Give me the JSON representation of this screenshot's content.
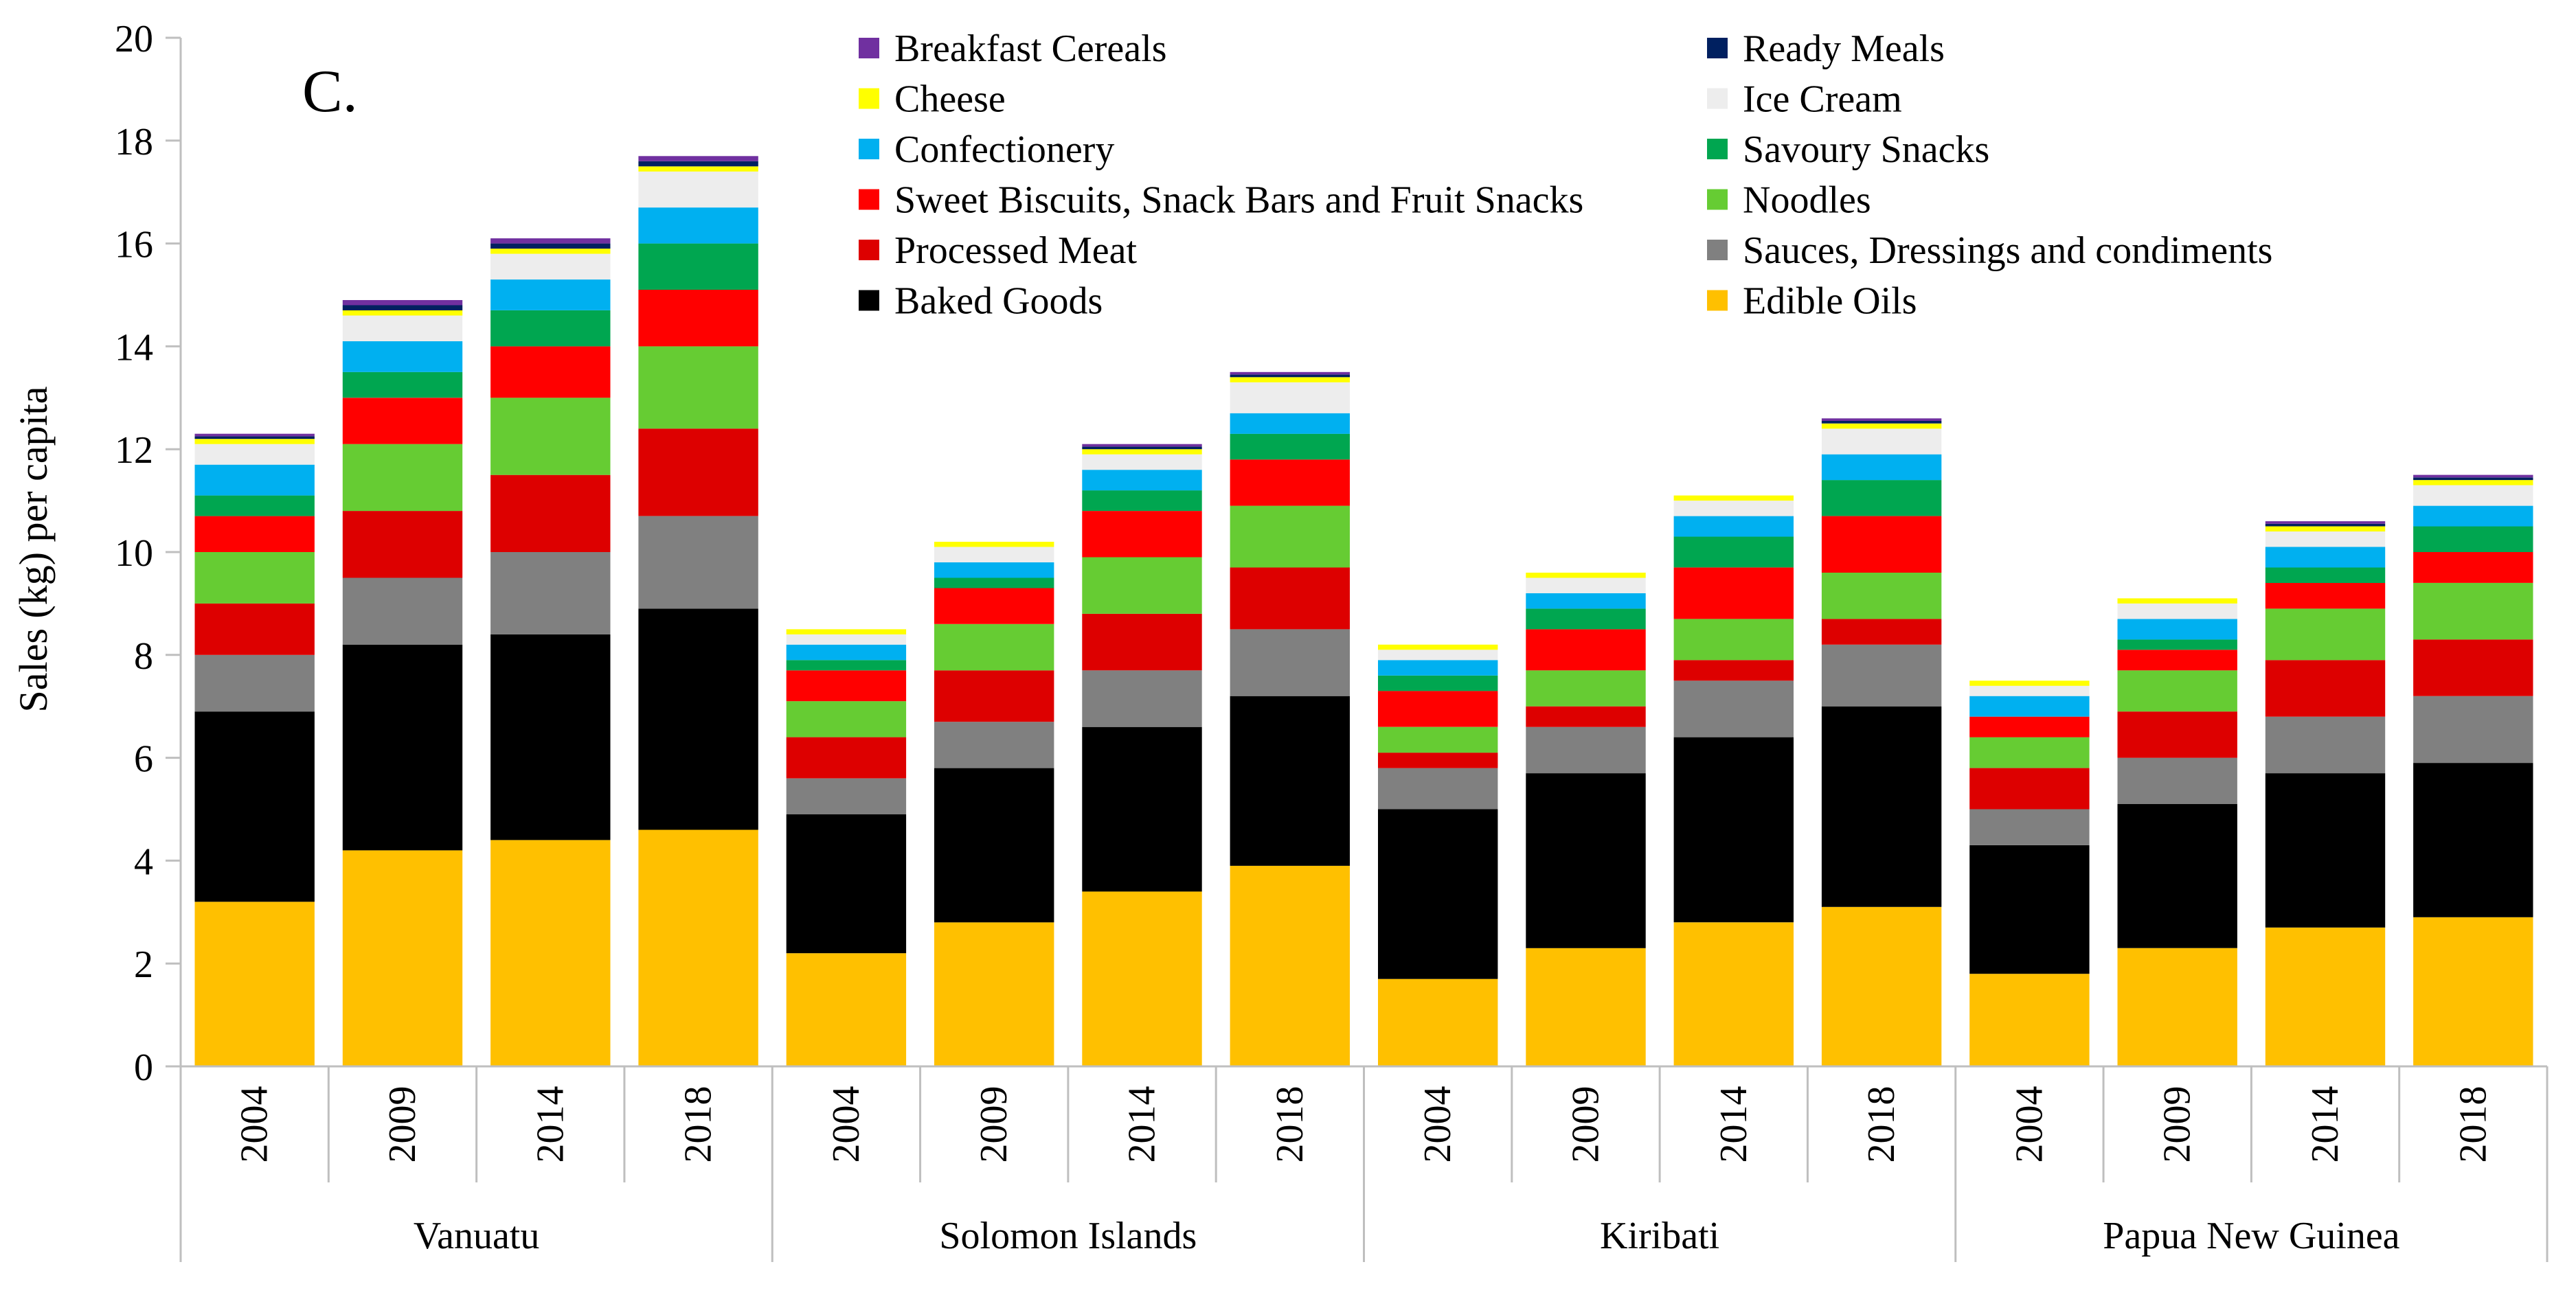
{
  "chart_data": {
    "type": "bar",
    "stacked": true,
    "panel_label": "C.",
    "title": "",
    "xlabel": "",
    "ylabel": "Sales (kg) per capita",
    "ylim": [
      0,
      20
    ],
    "yticks": [
      0,
      2,
      4,
      6,
      8,
      10,
      12,
      14,
      16,
      18,
      20
    ],
    "grid": false,
    "legend_position": "top-right",
    "groups": [
      {
        "name": "Vanuatu",
        "years": [
          "2004",
          "2009",
          "2014",
          "2018"
        ]
      },
      {
        "name": "Solomon Islands",
        "years": [
          "2004",
          "2009",
          "2014",
          "2018"
        ]
      },
      {
        "name": "Kiribati",
        "years": [
          "2004",
          "2009",
          "2014",
          "2018"
        ]
      },
      {
        "name": "Papua New Guinea",
        "years": [
          "2004",
          "2009",
          "2014",
          "2018"
        ]
      }
    ],
    "categories": [
      "Vanuatu 2004",
      "Vanuatu 2009",
      "Vanuatu 2014",
      "Vanuatu 2018",
      "Solomon Islands 2004",
      "Solomon Islands 2009",
      "Solomon Islands 2014",
      "Solomon Islands 2018",
      "Kiribati 2004",
      "Kiribati 2009",
      "Kiribati 2014",
      "Kiribati 2018",
      "Papua New Guinea 2004",
      "Papua New Guinea 2009",
      "Papua New Guinea 2014",
      "Papua New Guinea 2018"
    ],
    "series": [
      {
        "name": "Edible Oils",
        "color": "#FFC000",
        "values": [
          3.2,
          4.2,
          4.4,
          4.6,
          2.2,
          2.8,
          3.4,
          3.9,
          1.7,
          2.3,
          2.8,
          3.1,
          1.8,
          2.3,
          2.7,
          2.9
        ]
      },
      {
        "name": "Baked Goods",
        "color": "#000000",
        "values": [
          3.7,
          4.0,
          4.0,
          4.3,
          2.7,
          3.0,
          3.2,
          3.3,
          3.3,
          3.4,
          3.6,
          3.9,
          2.5,
          2.8,
          3.0,
          3.0
        ]
      },
      {
        "name": "Sauces, Dressings and condiments",
        "color": "#808080",
        "values": [
          1.1,
          1.3,
          1.6,
          1.8,
          0.7,
          0.9,
          1.1,
          1.3,
          0.8,
          0.9,
          1.1,
          1.2,
          0.7,
          0.9,
          1.1,
          1.3
        ]
      },
      {
        "name": "Processed Meat",
        "color": "#DD0000",
        "values": [
          1.0,
          1.3,
          1.5,
          1.7,
          0.8,
          1.0,
          1.1,
          1.2,
          0.3,
          0.4,
          0.4,
          0.5,
          0.8,
          0.9,
          1.1,
          1.1
        ]
      },
      {
        "name": "Noodles",
        "color": "#66CC33",
        "values": [
          1.0,
          1.3,
          1.5,
          1.6,
          0.7,
          0.9,
          1.1,
          1.2,
          0.5,
          0.7,
          0.8,
          0.9,
          0.6,
          0.8,
          1.0,
          1.1
        ]
      },
      {
        "name": "Sweet Biscuits, Snack Bars and Fruit Snacks",
        "color": "#FF0000",
        "values": [
          0.7,
          0.9,
          1.0,
          1.1,
          0.6,
          0.7,
          0.9,
          0.9,
          0.7,
          0.8,
          1.0,
          1.1,
          0.4,
          0.4,
          0.5,
          0.6
        ]
      },
      {
        "name": "Savoury Snacks",
        "color": "#00A650",
        "values": [
          0.4,
          0.5,
          0.7,
          0.9,
          0.2,
          0.2,
          0.4,
          0.5,
          0.3,
          0.4,
          0.6,
          0.7,
          0.0,
          0.2,
          0.3,
          0.5
        ]
      },
      {
        "name": "Confectionery",
        "color": "#00B0F0",
        "values": [
          0.6,
          0.6,
          0.6,
          0.7,
          0.3,
          0.3,
          0.4,
          0.4,
          0.3,
          0.3,
          0.4,
          0.5,
          0.4,
          0.4,
          0.4,
          0.4
        ]
      },
      {
        "name": "Ice Cream",
        "color": "#EDEDED",
        "values": [
          0.4,
          0.5,
          0.5,
          0.7,
          0.2,
          0.3,
          0.3,
          0.6,
          0.2,
          0.3,
          0.3,
          0.5,
          0.2,
          0.3,
          0.3,
          0.4
        ]
      },
      {
        "name": "Cheese",
        "color": "#FFFF00",
        "values": [
          0.1,
          0.1,
          0.1,
          0.1,
          0.1,
          0.1,
          0.1,
          0.1,
          0.1,
          0.1,
          0.1,
          0.1,
          0.1,
          0.1,
          0.1,
          0.1
        ]
      },
      {
        "name": "Ready Meals",
        "color": "#002060",
        "values": [
          0.05,
          0.1,
          0.1,
          0.1,
          0.0,
          0.0,
          0.05,
          0.05,
          0.0,
          0.0,
          0.0,
          0.05,
          0.0,
          0.0,
          0.05,
          0.05
        ]
      },
      {
        "name": "Breakfast Cereals",
        "color": "#7030A0",
        "values": [
          0.05,
          0.1,
          0.1,
          0.1,
          0.0,
          0.0,
          0.05,
          0.05,
          0.0,
          0.0,
          0.0,
          0.05,
          0.0,
          0.0,
          0.05,
          0.05
        ]
      }
    ],
    "legend_order": [
      "Breakfast Cereals",
      "Ready Meals",
      "Cheese",
      "Ice Cream",
      "Confectionery",
      "Savoury Snacks",
      "Sweet Biscuits, Snack Bars and Fruit Snacks",
      "Noodles",
      "Processed Meat",
      "Sauces, Dressings and condiments",
      "Baked Goods",
      "Edible Oils"
    ]
  }
}
